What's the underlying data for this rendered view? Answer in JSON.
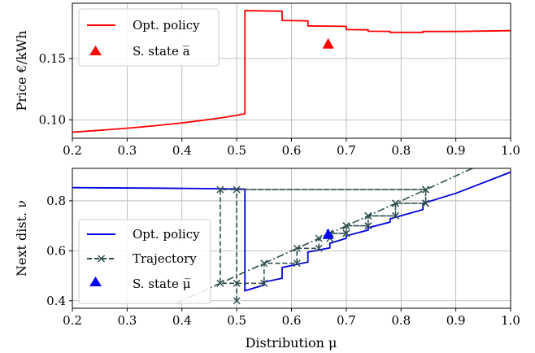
{
  "chart_data": [
    {
      "type": "line",
      "xlabel": "",
      "ylabel": "Price €/kWh",
      "xlim": [
        0.2,
        1.0
      ],
      "ylim": [
        0.085,
        0.195
      ],
      "xticks": [
        0.2,
        0.3,
        0.4,
        0.5,
        0.6,
        0.7,
        0.8,
        0.9,
        1.0
      ],
      "xtick_labels": [
        "0.2",
        "0.3",
        "0.4",
        "0.5",
        "0.6",
        "0.7",
        "0.8",
        "0.9",
        "1.0"
      ],
      "yticks": [
        0.1,
        0.15
      ],
      "ytick_labels": [
        "0.10",
        "0.15"
      ],
      "grid": true,
      "legend": "top-left",
      "series": [
        {
          "name": "Opt. policy",
          "kind": "line",
          "color": "#ff0000",
          "x": [
            0.2,
            0.25,
            0.3,
            0.35,
            0.4,
            0.45,
            0.48,
            0.5,
            0.515,
            0.515,
            0.583,
            0.583,
            0.63,
            0.63,
            0.7,
            0.7,
            0.74,
            0.74,
            0.78,
            0.78,
            0.84,
            0.84,
            0.9,
            1.0
          ],
          "y": [
            0.09,
            0.0915,
            0.0932,
            0.0952,
            0.0975,
            0.1003,
            0.1022,
            0.1037,
            0.105,
            0.189,
            0.1885,
            0.181,
            0.1806,
            0.1765,
            0.1762,
            0.1735,
            0.1733,
            0.1722,
            0.1721,
            0.1713,
            0.1713,
            0.172,
            0.172,
            0.1727
          ]
        },
        {
          "name": "S. state a̅",
          "kind": "marker",
          "marker": "triangle",
          "color": "#ff0000",
          "x": [
            0.667
          ],
          "y": [
            0.162
          ]
        }
      ]
    },
    {
      "type": "line",
      "xlabel": "Distribution μ",
      "ylabel": "Next dist. ν",
      "xlim": [
        0.2,
        1.0
      ],
      "ylim": [
        0.37,
        0.93
      ],
      "xticks": [
        0.2,
        0.3,
        0.4,
        0.5,
        0.6,
        0.7,
        0.8,
        0.9,
        1.0
      ],
      "xtick_labels": [
        "0.2",
        "0.3",
        "0.4",
        "0.5",
        "0.6",
        "0.7",
        "0.8",
        "0.9",
        "1.0"
      ],
      "yticks": [
        0.4,
        0.6,
        0.8
      ],
      "ytick_labels": [
        "0.4",
        "0.6",
        "0.8"
      ],
      "grid": true,
      "legend": "bottom-left",
      "series": [
        {
          "name": "Opt. policy",
          "kind": "line",
          "color": "#0000dd",
          "x": [
            0.2,
            0.35,
            0.45,
            0.515,
            0.515,
            0.55,
            0.55,
            0.583,
            0.583,
            0.63,
            0.63,
            0.67,
            0.67,
            0.7,
            0.7,
            0.74,
            0.74,
            0.78,
            0.78,
            0.84,
            0.84,
            0.9,
            1.0
          ],
          "y": [
            0.853,
            0.851,
            0.849,
            0.847,
            0.44,
            0.463,
            0.475,
            0.49,
            0.533,
            0.555,
            0.595,
            0.612,
            0.63,
            0.65,
            0.66,
            0.683,
            0.692,
            0.715,
            0.728,
            0.765,
            0.79,
            0.83,
            0.915
          ]
        },
        {
          "name": "",
          "kind": "identity",
          "color": "#2f4f4f",
          "x": [
            0.39,
            0.965
          ],
          "y": [
            0.39,
            0.965
          ]
        },
        {
          "name": "Trajectory",
          "kind": "trajectory",
          "color": "#2f4f4f",
          "x": [
            0.5,
            0.5,
            0.5,
            0.845,
            0.845,
            0.79,
            0.79,
            0.74,
            0.74,
            0.7,
            0.7,
            0.67,
            0.67,
            0.65,
            0.65,
            0.61,
            0.61,
            0.55,
            0.55,
            0.47,
            0.47,
            0.845,
            0.845,
            0.79,
            0.79,
            0.74,
            0.74,
            0.7,
            0.7,
            0.67
          ],
          "y": [
            0.4,
            0.47,
            0.845,
            0.845,
            0.79,
            0.79,
            0.74,
            0.74,
            0.7,
            0.7,
            0.67,
            0.67,
            0.65,
            0.65,
            0.61,
            0.61,
            0.55,
            0.55,
            0.47,
            0.47,
            0.845,
            0.845,
            0.79,
            0.79,
            0.74,
            0.74,
            0.7,
            0.7,
            0.67,
            0.67
          ]
        },
        {
          "name": "S. state μ̅",
          "kind": "marker",
          "marker": "triangle",
          "color": "#0000ff",
          "x": [
            0.667
          ],
          "y": [
            0.667
          ]
        }
      ]
    }
  ]
}
